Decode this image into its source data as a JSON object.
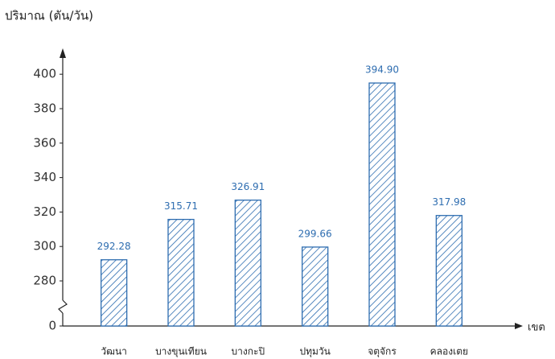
{
  "chart_data": {
    "type": "bar",
    "y_label": "ปริมาณ (ตัน/วัน)",
    "x_label": "เขต",
    "categories": [
      "วัฒนา",
      "บางขุนเทียน",
      "บางกะปิ",
      "ปทุมวัน",
      "จตุจักร",
      "คลองเตย"
    ],
    "values": [
      292.28,
      315.71,
      326.91,
      299.66,
      394.9,
      317.98
    ],
    "value_labels": [
      "292.28",
      "315.71",
      "326.91",
      "299.66",
      "394.90",
      "317.98"
    ],
    "color": "#2e6db0",
    "ylim": [
      0,
      410
    ],
    "yticks": [
      0,
      280,
      300,
      320,
      340,
      360,
      380,
      400
    ],
    "axis_break": [
      0,
      280
    ],
    "grid": false
  }
}
